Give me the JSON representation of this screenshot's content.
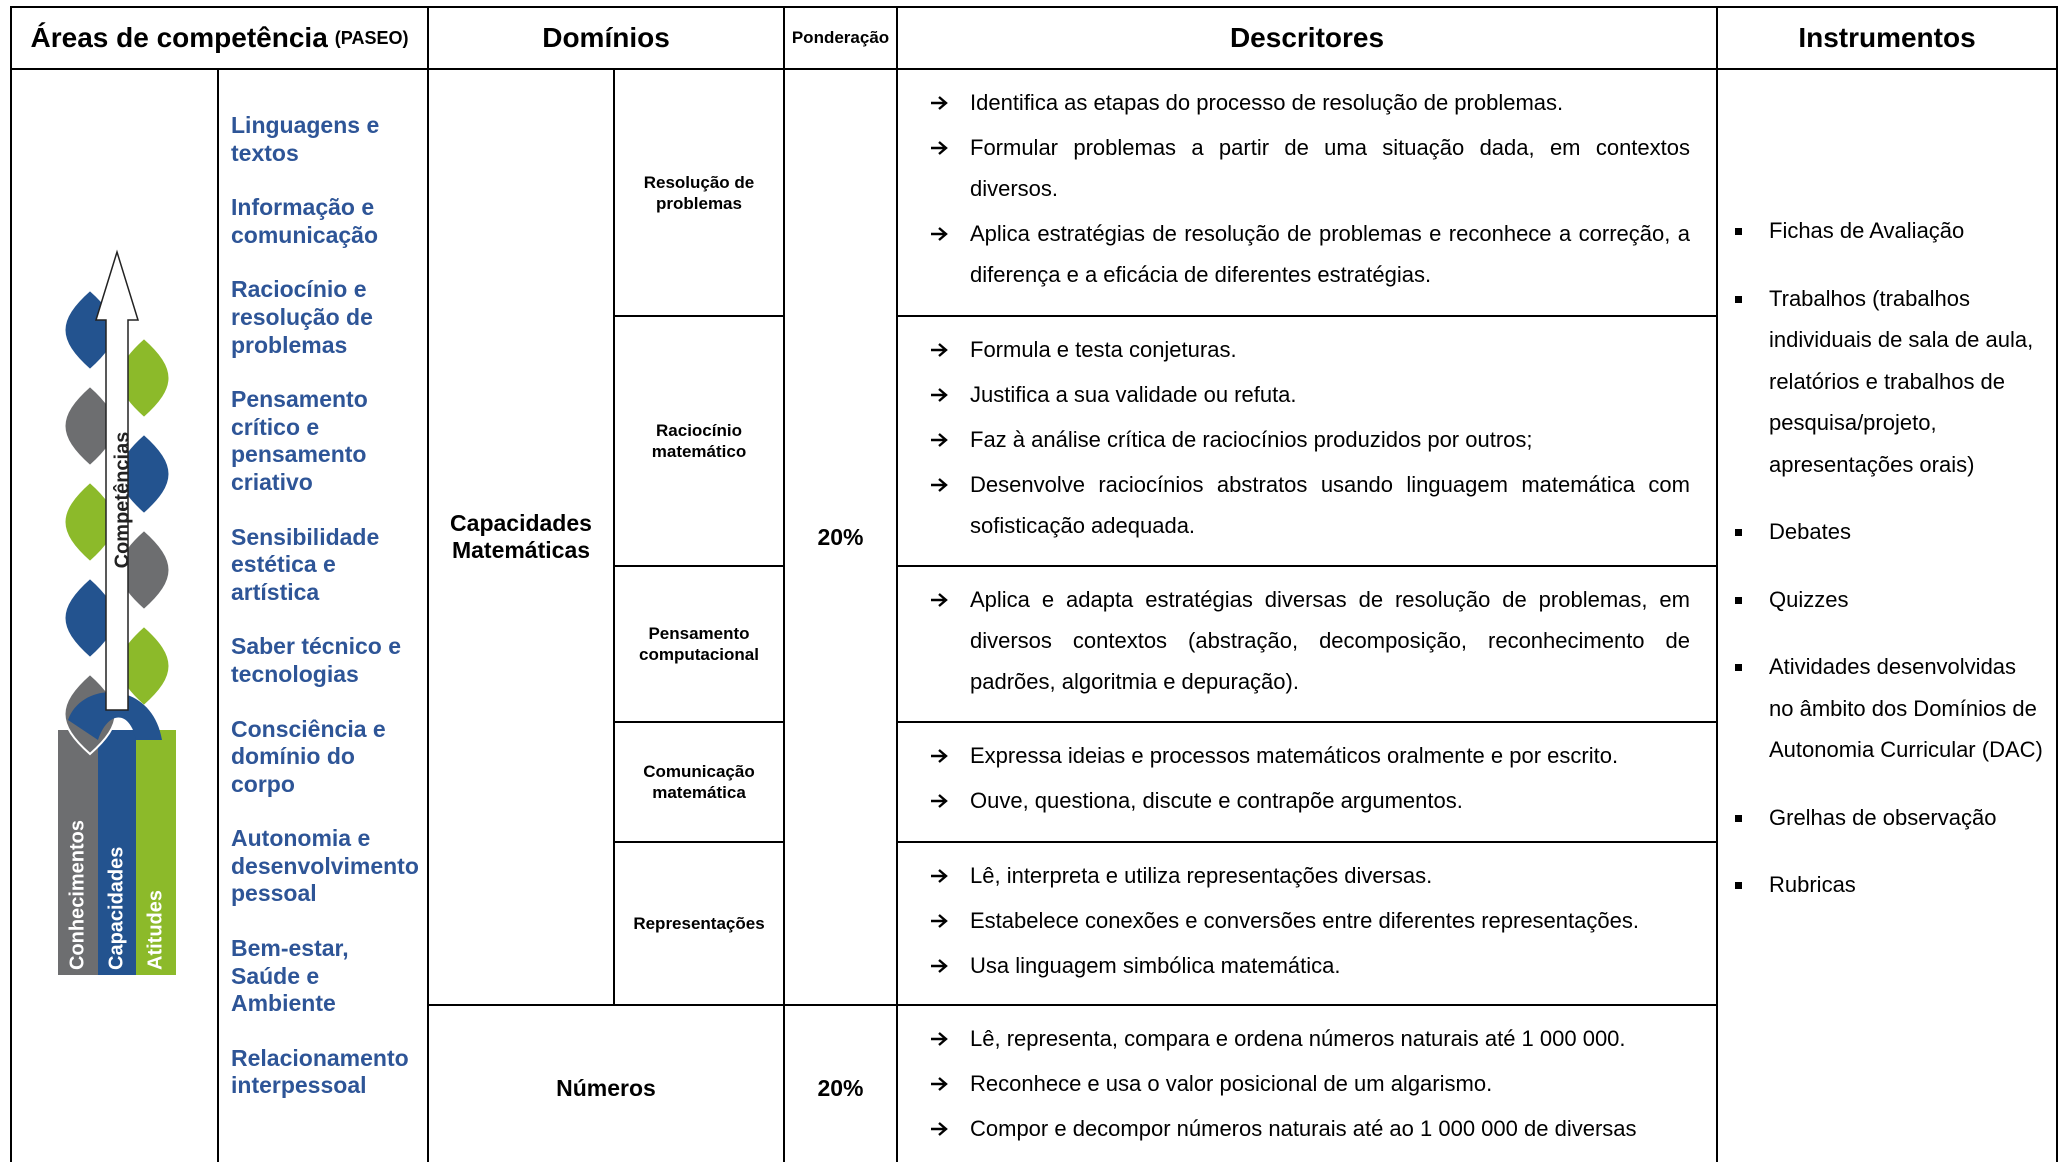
{
  "header": {
    "areas_title": "Áreas de competência",
    "areas_suffix": "(PASEO)",
    "dominios": "Domínios",
    "ponderacao": "Ponderação",
    "descritores": "Descritores",
    "instrumentos": "Instrumentos"
  },
  "graphic": {
    "strands": [
      "Conhecimentos",
      "Capacidades",
      "Atitudes"
    ],
    "arrow_label": "Competências"
  },
  "areas": [
    "Linguagens e textos",
    "Informação e comunicação",
    "Raciocínio e resolução de problemas",
    "Pensamento crítico e pensamento criativo",
    "Sensibilidade estética e artística",
    "Saber técnico e tecnologias",
    "Consciência e domínio do corpo",
    "Autonomia e desenvolvimento pessoal",
    "Bem-estar, Saúde e Ambiente",
    "Relacionamento interpessoal"
  ],
  "group": {
    "domain": "Capacidades Matemáticas",
    "weight": "20%",
    "rows": [
      {
        "subdomain": "Resolução de problemas",
        "descriptors": [
          "Identifica as etapas do processo de resolução de problemas.",
          "Formular problemas a partir de uma situação dada, em contextos diversos.",
          "Aplica estratégias de resolução de problemas e reconhece a correção, a diferença e a eficácia de diferentes estratégias."
        ]
      },
      {
        "subdomain": "Raciocínio matemático",
        "descriptors": [
          "Formula e testa conjeturas.",
          "Justifica a sua validade ou refuta.",
          "Faz à análise crítica de raciocínios produzidos por outros;",
          "Desenvolve raciocínios abstratos usando linguagem matemática com sofisticação adequada."
        ]
      },
      {
        "subdomain": "Pensamento computacional",
        "descriptors": [
          "Aplica e adapta estratégias diversas de resolução de problemas, em diversos contextos (abstração, decomposição, reconhecimento de padrões, algoritmia e depuração)."
        ]
      },
      {
        "subdomain": "Comunicação matemática",
        "descriptors": [
          "Expressa ideias e processos matemáticos oralmente e por escrito.",
          "Ouve, questiona, discute e contrapõe argumentos."
        ]
      },
      {
        "subdomain": "Representações",
        "descriptors": [
          "Lê, interpreta e utiliza representações diversas.",
          "Estabelece conexões e conversões entre diferentes representações.",
          "Usa linguagem simbólica matemática."
        ]
      }
    ]
  },
  "numeros": {
    "domain": "Números",
    "weight": "20%",
    "descriptors": [
      "Lê, representa, compara e ordena números naturais até 1 000 000.",
      "Reconhece e usa o valor posicional de um algarismo.",
      "Compor e decompor números naturais até ao 1 000 000 de diversas"
    ]
  },
  "instruments": [
    "Fichas de Avaliação",
    "Trabalhos (trabalhos individuais de sala de aula, relatórios e trabalhos de pesquisa/projeto, apresentações orais)",
    "Debates",
    "Quizzes",
    "Atividades desenvolvidas no âmbito dos Domínios de Autonomia Curricular (DAC)",
    "Grelhas de observação",
    "Rubricas"
  ]
}
